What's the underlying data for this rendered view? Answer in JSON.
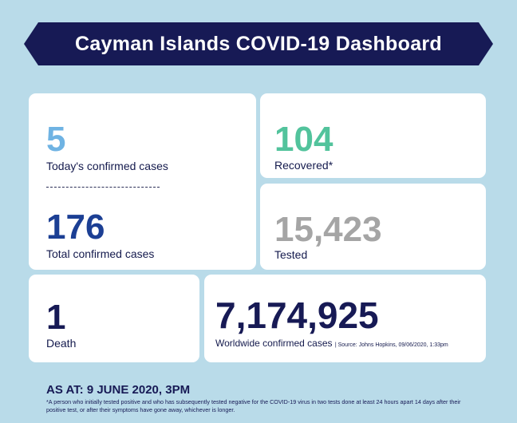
{
  "header": {
    "title": "Cayman Islands COVID-19 Dashboard"
  },
  "stats": {
    "today_confirmed": {
      "value": "5",
      "label": "Today's confirmed cases",
      "color": "#6fb3e3"
    },
    "total_confirmed": {
      "value": "176",
      "label": "Total confirmed cases",
      "color": "#1c3f94"
    },
    "recovered": {
      "value": "104",
      "label": "Recovered*",
      "color": "#52c39c"
    },
    "tested": {
      "value": "15,423",
      "label": "Tested",
      "color": "#a5a5a5"
    },
    "death": {
      "value": "1",
      "label": "Death",
      "color": "#171a55"
    },
    "worldwide": {
      "value": "7,174,925",
      "label": "Worldwide confirmed cases",
      "source": "| Source: Johns Hopkins, 09/06/2020, 1:33pm",
      "color": "#171a55"
    }
  },
  "footer": {
    "as_at": "AS AT: 9 JUNE 2020, 3PM",
    "footnote": "*A person who initially tested positive and who has subsequently tested negative for the COVID-19 virus in two tests done at least 24 hours apart 14 days after their positive test, or after their symptoms have gone away, whichever is longer."
  }
}
